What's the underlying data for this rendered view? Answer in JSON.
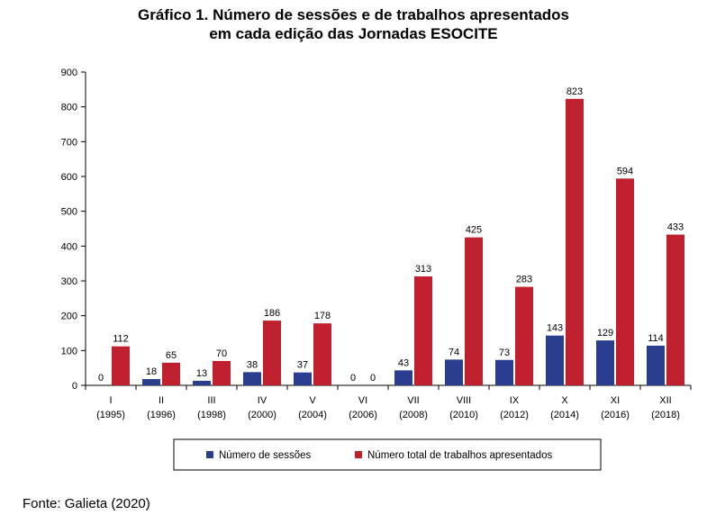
{
  "chart_data": {
    "type": "bar",
    "title_line1": "Gráfico 1. Número de sessões e de trabalhos apresentados",
    "title_line2": "em cada edição das Jornadas ESOCITE",
    "categories": [
      {
        "edition": "I",
        "year": "(1995)"
      },
      {
        "edition": "II",
        "year": "(1996)"
      },
      {
        "edition": "III",
        "year": "(1998)"
      },
      {
        "edition": "IV",
        "year": "(2000)"
      },
      {
        "edition": "V",
        "year": "(2004)"
      },
      {
        "edition": "VI",
        "year": "(2006)"
      },
      {
        "edition": "VII",
        "year": "(2008)"
      },
      {
        "edition": "VIII",
        "year": "(2010)"
      },
      {
        "edition": "IX",
        "year": "(2012)"
      },
      {
        "edition": "X",
        "year": "(2014)"
      },
      {
        "edition": "XI",
        "year": "(2016)"
      },
      {
        "edition": "XII",
        "year": "(2018)"
      }
    ],
    "series": [
      {
        "name": "Número de sessões",
        "color": "#2a3d8f",
        "values": [
          0,
          18,
          13,
          38,
          37,
          0,
          43,
          74,
          73,
          143,
          129,
          114
        ]
      },
      {
        "name": "Número total de trabalhos apresentados",
        "color": "#c0202e",
        "values": [
          112,
          65,
          70,
          186,
          178,
          0,
          313,
          425,
          283,
          823,
          594,
          433
        ]
      }
    ],
    "ylim": [
      0,
      900
    ],
    "yticks": [
      0,
      100,
      200,
      300,
      400,
      500,
      600,
      700,
      800,
      900
    ],
    "xlabel": "",
    "ylabel": "",
    "grid": false,
    "legend_position": "bottom"
  },
  "source": "Fonte: Galieta (2020)"
}
